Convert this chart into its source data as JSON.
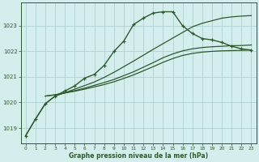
{
  "bg_color": "#d4eeee",
  "grid_color": "#b0d0d0",
  "line_color": "#2d5a2d",
  "xlabel": "Graphe pression niveau de la mer (hPa)",
  "xlim": [
    -0.5,
    23.5
  ],
  "ylim": [
    1018.4,
    1023.9
  ],
  "yticks": [
    1019,
    1020,
    1021,
    1022,
    1023
  ],
  "xticks": [
    0,
    1,
    2,
    3,
    4,
    5,
    6,
    7,
    8,
    9,
    10,
    11,
    12,
    13,
    14,
    15,
    16,
    17,
    18,
    19,
    20,
    21,
    22,
    23
  ],
  "curve_x": [
    0,
    1,
    2,
    3,
    4,
    5,
    6,
    7,
    8,
    9,
    10,
    11,
    12,
    13,
    14,
    15,
    16,
    17,
    18,
    19,
    20,
    21,
    22,
    23
  ],
  "curve_y": [
    1018.7,
    1019.35,
    1019.95,
    1020.25,
    1020.45,
    1020.65,
    1020.95,
    1021.1,
    1021.45,
    1022.0,
    1022.4,
    1023.05,
    1023.3,
    1023.5,
    1023.55,
    1023.55,
    1023.0,
    1022.7,
    1022.5,
    1022.45,
    1022.35,
    1022.2,
    1022.1,
    1022.05
  ],
  "line1_x": [
    0,
    1,
    2,
    3,
    4,
    5,
    6,
    7,
    8,
    9,
    10,
    11,
    12,
    13,
    14,
    15,
    16,
    17,
    18,
    19,
    20,
    21,
    22,
    23
  ],
  "line1_y": [
    1018.7,
    1019.35,
    1019.95,
    1020.25,
    1020.38,
    1020.52,
    1020.66,
    1020.8,
    1020.98,
    1021.18,
    1021.4,
    1021.62,
    1021.85,
    1022.08,
    1022.3,
    1022.52,
    1022.74,
    1022.96,
    1023.1,
    1023.2,
    1023.3,
    1023.35,
    1023.38,
    1023.4
  ],
  "line2_x": [
    2,
    3,
    4,
    5,
    6,
    7,
    8,
    9,
    10,
    11,
    12,
    13,
    14,
    15,
    16,
    17,
    18,
    19,
    20,
    21,
    22,
    23
  ],
  "line2_y": [
    1020.25,
    1020.3,
    1020.38,
    1020.46,
    1020.56,
    1020.67,
    1020.78,
    1020.9,
    1021.05,
    1021.2,
    1021.38,
    1021.56,
    1021.75,
    1021.9,
    1022.02,
    1022.1,
    1022.15,
    1022.18,
    1022.2,
    1022.22,
    1022.23,
    1022.25
  ],
  "line3_x": [
    2,
    3,
    4,
    5,
    6,
    7,
    8,
    9,
    10,
    11,
    12,
    13,
    14,
    15,
    16,
    17,
    18,
    19,
    20,
    21,
    22,
    23
  ],
  "line3_y": [
    1020.25,
    1020.3,
    1020.37,
    1020.44,
    1020.52,
    1020.61,
    1020.7,
    1020.81,
    1020.94,
    1021.08,
    1021.24,
    1021.4,
    1021.57,
    1021.72,
    1021.84,
    1021.92,
    1021.97,
    1022.0,
    1022.02,
    1022.03,
    1022.04,
    1022.05
  ]
}
